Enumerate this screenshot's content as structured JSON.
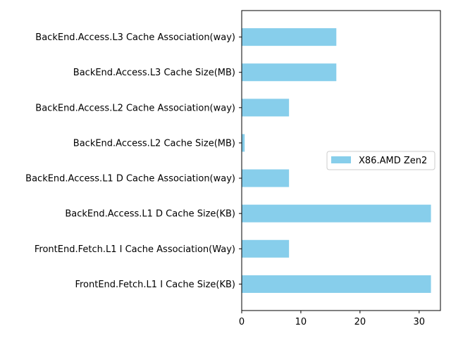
{
  "chart_data": {
    "type": "bar",
    "orientation": "horizontal",
    "categories": [
      "FrontEnd.Fetch.L1 I Cache Size(KB)",
      "FrontEnd.Fetch.L1 I Cache Association(Way)",
      "BackEnd.Access.L1 D Cache Size(KB)",
      "BackEnd.Access.L1 D Cache Association(way)",
      "BackEnd.Access.L2 Cache Size(MB)",
      "BackEnd.Access.L2 Cache Association(way)",
      "BackEnd.Access.L3 Cache Size(MB)",
      "BackEnd.Access.L3 Cache Association(way)"
    ],
    "series": [
      {
        "name": "X86.AMD Zen2",
        "values": [
          32,
          8,
          32,
          8,
          0.5,
          8,
          16,
          16
        ],
        "color": "#87ceeb"
      }
    ],
    "xlim": [
      0,
      33.6
    ],
    "xticks": [
      "0",
      "10",
      "20",
      "30"
    ],
    "xtick_values": [
      0,
      10,
      20,
      30
    ],
    "title": "",
    "xlabel": "",
    "ylabel": "",
    "grid": false,
    "legend_position": "center-right"
  }
}
